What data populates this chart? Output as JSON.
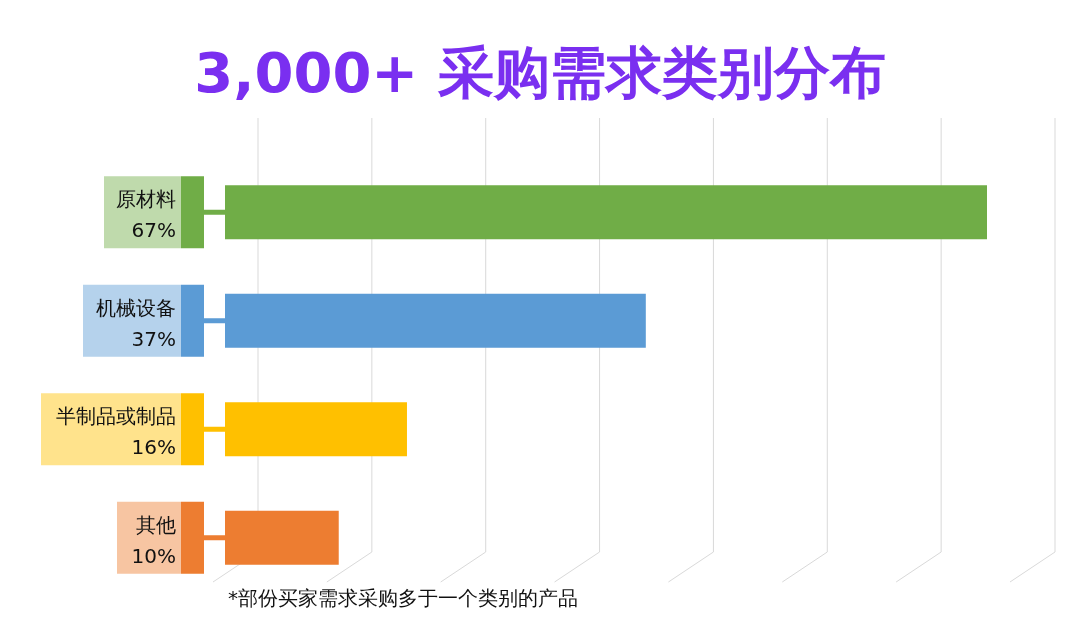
{
  "chart_data": {
    "type": "bar",
    "orientation": "horizontal",
    "title": "3,000+ 采购需求类别分布",
    "categories": [
      "原材料",
      "机械设备",
      "半制品或制品",
      "其他"
    ],
    "values": [
      67,
      37,
      16,
      10
    ],
    "colors": [
      "#70ad47",
      "#5b9bd5",
      "#ffc000",
      "#ed7d31"
    ],
    "value_labels": [
      "67%",
      "37%",
      "16%",
      "10%"
    ],
    "grid": "x",
    "annotations": [
      "*部份买家需求采购多于一个类别的产品"
    ]
  }
}
